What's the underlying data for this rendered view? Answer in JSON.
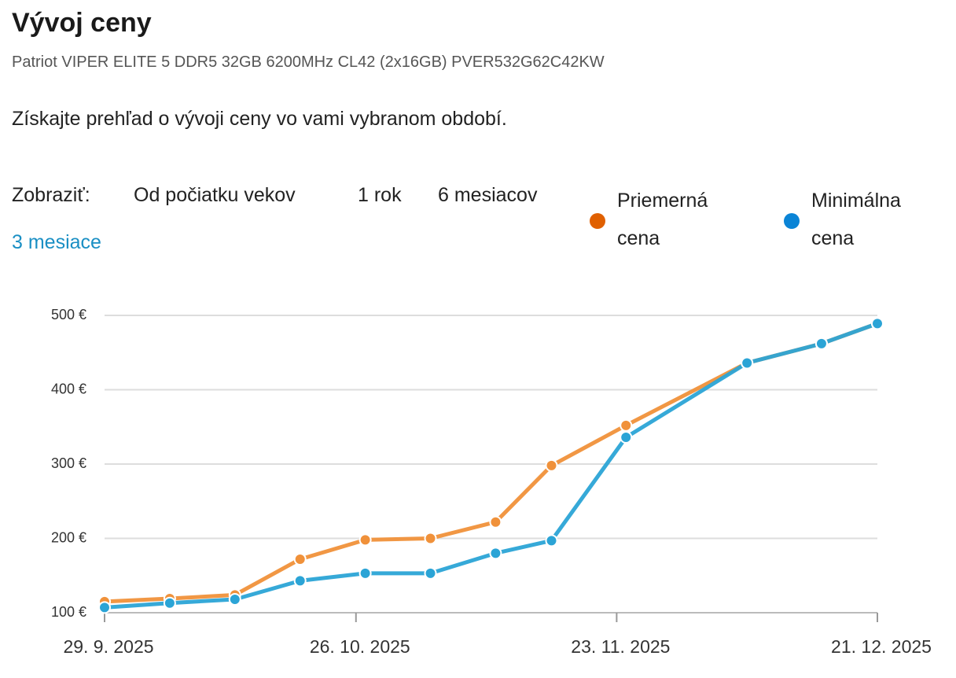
{
  "header": {
    "title": "Vývoj ceny",
    "subtitle": "Patriot VIPER ELITE 5 DDR5 32GB 6200MHz CL42 (2x16GB) PVER532G62C42KW",
    "description": "Získajte prehľad o vývoji ceny vo vami vybranom období."
  },
  "filter": {
    "label": "Zobraziť:",
    "options": [
      "Od počiatku vekov",
      "1 rok",
      "6 mesiacov",
      "3 mesiace"
    ],
    "active": "3 mesiace"
  },
  "chart_data": {
    "type": "line",
    "x": [
      "2025-09-29",
      "2025-10-06",
      "2025-10-13",
      "2025-10-20",
      "2025-10-27",
      "2025-11-03",
      "2025-11-10",
      "2025-11-16",
      "2025-11-24",
      "2025-12-07",
      "2025-12-15",
      "2025-12-21"
    ],
    "series": [
      {
        "name": "Priemerná cena",
        "color": "#f0913a",
        "legend_color": "#e06000",
        "values": [
          115,
          119,
          124,
          172,
          198,
          200,
          222,
          298,
          352,
          436,
          462,
          489
        ]
      },
      {
        "name": "Minimálna cena",
        "color": "#2ba4d6",
        "legend_color": "#0a84d6",
        "values": [
          107,
          113,
          118,
          143,
          153,
          153,
          180,
          197,
          336,
          436,
          462,
          489
        ]
      }
    ],
    "xlim": [
      "2025-09-29",
      "2025-12-21"
    ],
    "xticks": [
      {
        "value": "2025-09-29",
        "label": "29. 9. 2025"
      },
      {
        "value": "2025-10-26",
        "label": "26. 10. 2025"
      },
      {
        "value": "2025-11-23",
        "label": "23. 11. 2025"
      },
      {
        "value": "2025-12-21",
        "label": "21. 12. 2025"
      }
    ],
    "ylim": [
      100,
      500
    ],
    "yticks": [
      {
        "value": 100,
        "label": "100 €"
      },
      {
        "value": 200,
        "label": "200 €"
      },
      {
        "value": 300,
        "label": "300 €"
      },
      {
        "value": 400,
        "label": "400 €"
      },
      {
        "value": 500,
        "label": "500 €"
      }
    ],
    "grid": true
  }
}
